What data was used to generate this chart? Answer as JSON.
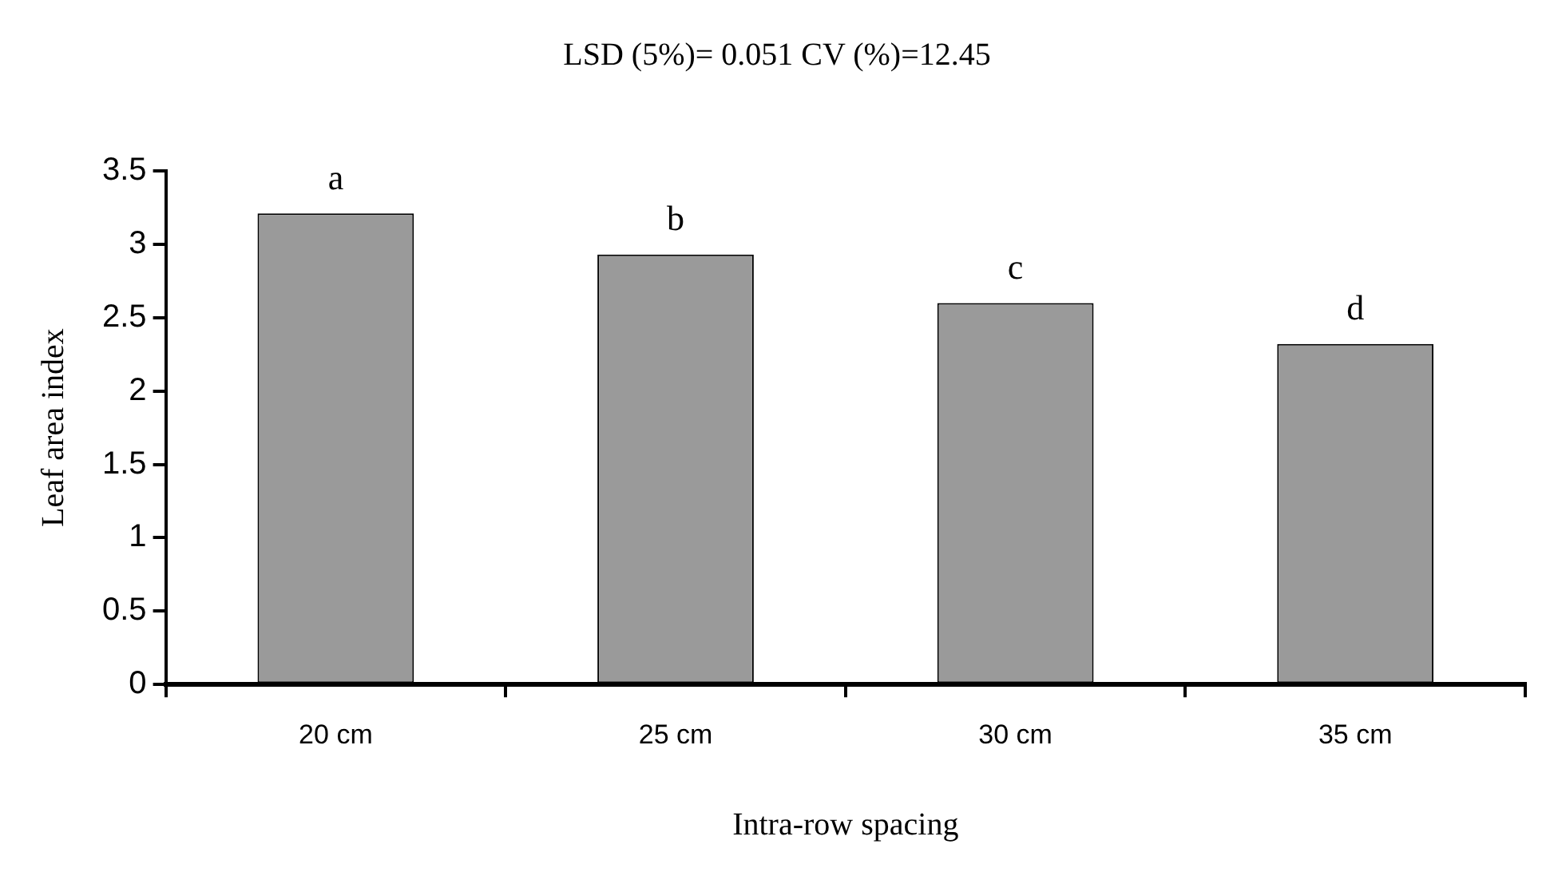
{
  "chart_data": {
    "type": "bar",
    "title": "LSD (5%)= 0.051 CV (%)=12.45",
    "xlabel": "Intra-row spacing",
    "ylabel": "Leaf area index",
    "categories": [
      "20 cm",
      "25 cm",
      "30 cm",
      "35 cm"
    ],
    "values": [
      3.21,
      2.93,
      2.6,
      2.32
    ],
    "color": "#9a9a9a",
    "ylim": [
      0,
      3.5
    ],
    "yticks": [
      0,
      0.5,
      1,
      1.5,
      2,
      2.5,
      3,
      3.5
    ],
    "grid": false,
    "legend": false,
    "annotations": [
      "a",
      "b",
      "c",
      "d"
    ]
  }
}
